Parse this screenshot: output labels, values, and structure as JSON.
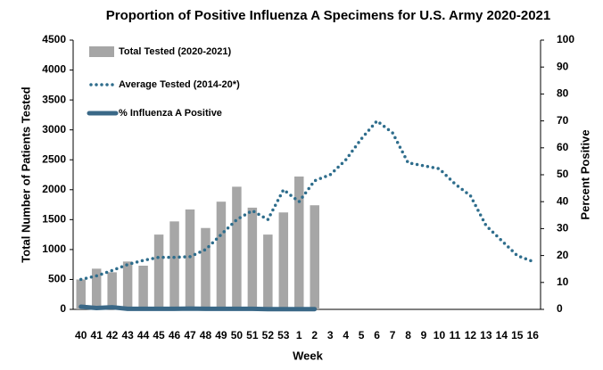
{
  "chart_data": {
    "type": "bar_line",
    "title": "Proportion of Positive Influenza A Specimens for U.S. Army 2020-2021",
    "x_label": "Week",
    "y_label": "Total Number of Patients Tested",
    "y2_label": "Percent Positive",
    "categories": [
      "40",
      "41",
      "42",
      "43",
      "44",
      "45",
      "46",
      "47",
      "48",
      "49",
      "50",
      "51",
      "52",
      "53",
      "1",
      "2",
      "3",
      "4",
      "5",
      "6",
      "7",
      "8",
      "9",
      "10",
      "11",
      "12",
      "13",
      "14",
      "15",
      "16"
    ],
    "series": [
      {
        "name": "Total Tested (2020-2021)",
        "kind": "bar",
        "color": "#a6a6a6",
        "values": [
          500,
          680,
          620,
          800,
          730,
          1250,
          1470,
          1670,
          1360,
          1800,
          2050,
          1700,
          1250,
          1620,
          2220,
          1740,
          null,
          null,
          null,
          null,
          null,
          null,
          null,
          null,
          null,
          null,
          null,
          null,
          null,
          null
        ]
      },
      {
        "name": "Average Tested (2014-20*)",
        "kind": "dotted",
        "color": "#2e6d8c",
        "values": [
          500,
          560,
          650,
          750,
          820,
          870,
          870,
          880,
          1000,
          1250,
          1500,
          1650,
          1500,
          2000,
          1800,
          2150,
          2250,
          2500,
          2850,
          3150,
          2950,
          2450,
          2400,
          2350,
          2100,
          1900,
          1400,
          1150,
          900,
          800
        ]
      },
      {
        "name": "% Influenza A Positive",
        "kind": "line",
        "color": "#3a6887",
        "axis": "y2",
        "values": [
          1,
          0.5,
          0.8,
          0.2,
          0.2,
          0.2,
          0.2,
          0.3,
          0.2,
          0.2,
          0.2,
          0.2,
          0.1,
          0.1,
          0.1,
          0.1,
          null,
          null,
          null,
          null,
          null,
          null,
          null,
          null,
          null,
          null,
          null,
          null,
          null,
          null
        ]
      }
    ],
    "ylim": [
      0,
      4500
    ],
    "yticks": [
      0,
      500,
      1000,
      1500,
      2000,
      2500,
      3000,
      3500,
      4000,
      4500
    ],
    "y2lim": [
      0,
      100
    ],
    "y2ticks": [
      0,
      10,
      20,
      30,
      40,
      50,
      60,
      70,
      80,
      90,
      100
    ],
    "legend": "upper left"
  }
}
